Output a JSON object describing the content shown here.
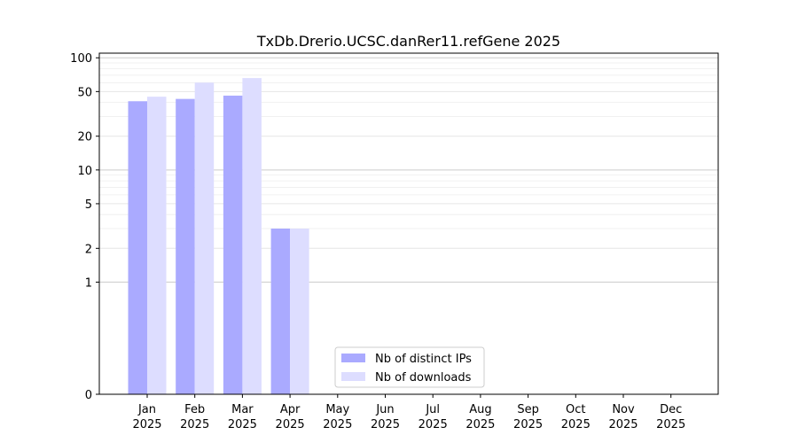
{
  "chart_data": {
    "type": "bar",
    "title": "TxDb.Drerio.UCSC.danRer11.refGene 2025",
    "xlabel": "",
    "ylabel": "",
    "y_scale": "symlog",
    "ylim": [
      0,
      110
    ],
    "y_ticks": [
      0,
      1,
      2,
      5,
      10,
      20,
      50,
      100
    ],
    "y_tick_labels": [
      "0",
      "1",
      "2",
      "5",
      "10",
      "20",
      "50",
      "100"
    ],
    "grid": "horizontal",
    "legend_position": "bottom-center",
    "categories": [
      {
        "month": "Jan",
        "year": "2025"
      },
      {
        "month": "Feb",
        "year": "2025"
      },
      {
        "month": "Mar",
        "year": "2025"
      },
      {
        "month": "Apr",
        "year": "2025"
      },
      {
        "month": "May",
        "year": "2025"
      },
      {
        "month": "Jun",
        "year": "2025"
      },
      {
        "month": "Jul",
        "year": "2025"
      },
      {
        "month": "Aug",
        "year": "2025"
      },
      {
        "month": "Sep",
        "year": "2025"
      },
      {
        "month": "Oct",
        "year": "2025"
      },
      {
        "month": "Nov",
        "year": "2025"
      },
      {
        "month": "Dec",
        "year": "2025"
      }
    ],
    "series": [
      {
        "name": "Nb of distinct IPs",
        "color": "#aaaaff",
        "values": [
          41,
          43,
          46,
          3,
          0,
          0,
          0,
          0,
          0,
          0,
          0,
          0
        ]
      },
      {
        "name": "Nb of downloads",
        "color": "#ddddff",
        "values": [
          45,
          60,
          66,
          3,
          0,
          0,
          0,
          0,
          0,
          0,
          0,
          0
        ]
      }
    ]
  }
}
